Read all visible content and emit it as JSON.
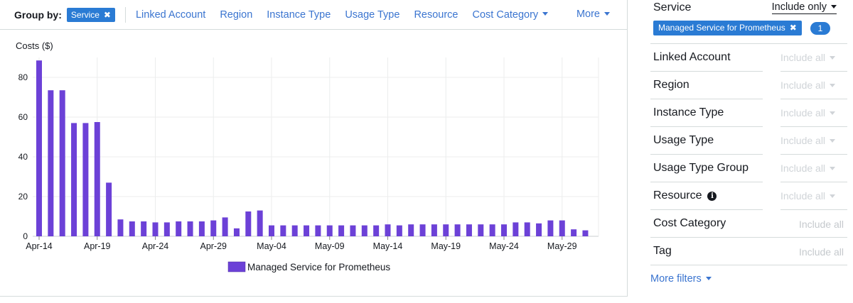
{
  "groupby": {
    "label": "Group by:",
    "selected": "Service",
    "remove_symbol": "✖",
    "options": [
      "Linked Account",
      "Region",
      "Instance Type",
      "Usage Type",
      "Resource",
      "Cost Category"
    ],
    "more": "More"
  },
  "chart_data": {
    "type": "bar",
    "ylabel": "Costs ($)",
    "ylim": [
      0,
      90
    ],
    "yticks": [
      0,
      20,
      40,
      60,
      80
    ],
    "grid": true,
    "x_tick_labels": [
      "Apr-14",
      "Apr-19",
      "Apr-24",
      "Apr-29",
      "May-04",
      "May-09",
      "May-14",
      "May-19",
      "May-24",
      "May-29"
    ],
    "categories": [
      "Apr-14",
      "Apr-15",
      "Apr-16",
      "Apr-17",
      "Apr-18",
      "Apr-19",
      "Apr-20",
      "Apr-21",
      "Apr-22",
      "Apr-23",
      "Apr-24",
      "Apr-25",
      "Apr-26",
      "Apr-27",
      "Apr-28",
      "Apr-29",
      "Apr-30",
      "May-01",
      "May-02",
      "May-03",
      "May-04",
      "May-05",
      "May-06",
      "May-07",
      "May-08",
      "May-09",
      "May-10",
      "May-11",
      "May-12",
      "May-13",
      "May-14",
      "May-15",
      "May-16",
      "May-17",
      "May-18",
      "May-19",
      "May-20",
      "May-21",
      "May-22",
      "May-23",
      "May-24",
      "May-25",
      "May-26",
      "May-27",
      "May-28",
      "May-29",
      "May-30",
      "May-31"
    ],
    "series": [
      {
        "name": "Managed Service for Prometheus",
        "color": "#6c41d7",
        "values": [
          88.5,
          73.5,
          73.5,
          57,
          57,
          57.5,
          27,
          8.5,
          7.5,
          7.5,
          7,
          7,
          7.5,
          7.5,
          7.5,
          8,
          9.5,
          4,
          12.5,
          13,
          5.5,
          5.5,
          5.5,
          5.5,
          5.5,
          5.5,
          5.5,
          5.5,
          5.5,
          5.5,
          6,
          5.5,
          6,
          6,
          6,
          6,
          6,
          6,
          6,
          6,
          6,
          7,
          7,
          6.5,
          8,
          8,
          3.5,
          3
        ]
      }
    ],
    "legend_position": "bottom-center"
  },
  "filters": {
    "service": {
      "label": "Service",
      "mode": "Include only",
      "chip": "Managed Service for Prometheus",
      "remove_symbol": "✖",
      "count": "1"
    },
    "rows": [
      {
        "label": "Linked Account",
        "value": "Include all",
        "dropdown": true,
        "info": false
      },
      {
        "label": "Region",
        "value": "Include all",
        "dropdown": true,
        "info": false
      },
      {
        "label": "Instance Type",
        "value": "Include all",
        "dropdown": true,
        "info": false
      },
      {
        "label": "Usage Type",
        "value": "Include all",
        "dropdown": true,
        "info": false
      },
      {
        "label": "Usage Type Group",
        "value": "Include all",
        "dropdown": true,
        "info": false
      },
      {
        "label": "Resource",
        "value": "Include all",
        "dropdown": true,
        "info": true
      },
      {
        "label": "Cost Category",
        "value": "Include all",
        "dropdown": false,
        "info": false
      },
      {
        "label": "Tag",
        "value": "Include all",
        "dropdown": false,
        "info": false
      }
    ],
    "info_symbol": "i",
    "more_filters": "More filters"
  },
  "colors": {
    "accent": "#2a7bd4",
    "link": "#3b75d0",
    "bar": "#6c41d7",
    "border": "#d5dbdb"
  }
}
